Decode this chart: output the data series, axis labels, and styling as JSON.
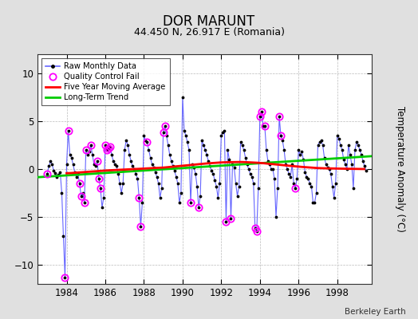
{
  "title": "DOR MARUNT",
  "subtitle": "44.450 N, 26.917 E (Romania)",
  "credit": "Berkeley Earth",
  "ylabel": "Temperature Anomaly (°C)",
  "xlim": [
    1982.5,
    1999.8
  ],
  "ylim": [
    -12,
    12
  ],
  "yticks": [
    -10,
    -5,
    0,
    5,
    10
  ],
  "xticks": [
    1984,
    1986,
    1988,
    1990,
    1992,
    1994,
    1996,
    1998
  ],
  "bg_color": "#e0e0e0",
  "plot_bg_color": "#ffffff",
  "raw_color": "#6666ff",
  "qc_color": "#ff00ff",
  "ma_color": "#ff0000",
  "trend_color": "#00cc00",
  "raw_data": [
    [
      1983.0,
      -0.5
    ],
    [
      1983.083,
      0.3
    ],
    [
      1983.167,
      0.8
    ],
    [
      1983.25,
      0.5
    ],
    [
      1983.333,
      -0.2
    ],
    [
      1983.417,
      -0.4
    ],
    [
      1983.5,
      -0.8
    ],
    [
      1983.583,
      -0.6
    ],
    [
      1983.667,
      -0.3
    ],
    [
      1983.75,
      -2.5
    ],
    [
      1983.833,
      -7.0
    ],
    [
      1983.917,
      -11.3
    ],
    [
      1984.0,
      0.5
    ],
    [
      1984.083,
      4.0
    ],
    [
      1984.167,
      1.5
    ],
    [
      1984.25,
      1.2
    ],
    [
      1984.333,
      0.5
    ],
    [
      1984.417,
      -0.3
    ],
    [
      1984.5,
      -0.8
    ],
    [
      1984.583,
      -0.5
    ],
    [
      1984.667,
      -1.5
    ],
    [
      1984.75,
      -2.8
    ],
    [
      1984.833,
      -2.5
    ],
    [
      1984.917,
      -3.5
    ],
    [
      1985.0,
      2.0
    ],
    [
      1985.083,
      1.5
    ],
    [
      1985.167,
      1.8
    ],
    [
      1985.25,
      2.5
    ],
    [
      1985.333,
      1.5
    ],
    [
      1985.417,
      0.5
    ],
    [
      1985.5,
      0.3
    ],
    [
      1985.583,
      0.8
    ],
    [
      1985.667,
      -1.0
    ],
    [
      1985.75,
      -2.0
    ],
    [
      1985.833,
      -4.0
    ],
    [
      1985.917,
      -3.0
    ],
    [
      1986.0,
      2.5
    ],
    [
      1986.083,
      2.0
    ],
    [
      1986.167,
      2.2
    ],
    [
      1986.25,
      2.3
    ],
    [
      1986.333,
      1.5
    ],
    [
      1986.417,
      0.8
    ],
    [
      1986.5,
      0.5
    ],
    [
      1986.583,
      0.3
    ],
    [
      1986.667,
      -0.5
    ],
    [
      1986.75,
      -1.5
    ],
    [
      1986.833,
      -2.5
    ],
    [
      1986.917,
      -1.5
    ],
    [
      1987.0,
      2.0
    ],
    [
      1987.083,
      3.0
    ],
    [
      1987.167,
      2.5
    ],
    [
      1987.25,
      1.5
    ],
    [
      1987.333,
      0.8
    ],
    [
      1987.417,
      0.3
    ],
    [
      1987.5,
      0.0
    ],
    [
      1987.583,
      -0.5
    ],
    [
      1987.667,
      -1.0
    ],
    [
      1987.75,
      -3.0
    ],
    [
      1987.833,
      -6.0
    ],
    [
      1987.917,
      -3.5
    ],
    [
      1988.0,
      3.5
    ],
    [
      1988.083,
      3.0
    ],
    [
      1988.167,
      2.8
    ],
    [
      1988.25,
      2.0
    ],
    [
      1988.333,
      1.2
    ],
    [
      1988.417,
      0.5
    ],
    [
      1988.5,
      0.2
    ],
    [
      1988.583,
      -0.3
    ],
    [
      1988.667,
      -0.8
    ],
    [
      1988.75,
      -1.5
    ],
    [
      1988.833,
      -3.0
    ],
    [
      1988.917,
      -2.0
    ],
    [
      1989.0,
      3.8
    ],
    [
      1989.083,
      4.5
    ],
    [
      1989.167,
      3.5
    ],
    [
      1989.25,
      2.5
    ],
    [
      1989.333,
      1.5
    ],
    [
      1989.417,
      0.8
    ],
    [
      1989.5,
      0.3
    ],
    [
      1989.583,
      -0.2
    ],
    [
      1989.667,
      -0.8
    ],
    [
      1989.75,
      -1.5
    ],
    [
      1989.833,
      -3.5
    ],
    [
      1989.917,
      -2.5
    ],
    [
      1990.0,
      7.5
    ],
    [
      1990.083,
      4.0
    ],
    [
      1990.167,
      3.5
    ],
    [
      1990.25,
      2.8
    ],
    [
      1990.333,
      2.0
    ],
    [
      1990.417,
      -3.5
    ],
    [
      1990.5,
      0.5
    ],
    [
      1990.583,
      0.2
    ],
    [
      1990.667,
      -0.5
    ],
    [
      1990.75,
      -1.8
    ],
    [
      1990.833,
      -4.0
    ],
    [
      1990.917,
      -2.8
    ],
    [
      1991.0,
      3.0
    ],
    [
      1991.083,
      2.5
    ],
    [
      1991.167,
      2.0
    ],
    [
      1991.25,
      1.5
    ],
    [
      1991.333,
      0.8
    ],
    [
      1991.417,
      0.3
    ],
    [
      1991.5,
      -0.2
    ],
    [
      1991.583,
      -0.5
    ],
    [
      1991.667,
      -1.2
    ],
    [
      1991.75,
      -1.8
    ],
    [
      1991.833,
      -3.0
    ],
    [
      1991.917,
      -1.5
    ],
    [
      1992.0,
      3.5
    ],
    [
      1992.083,
      3.8
    ],
    [
      1992.167,
      4.0
    ],
    [
      1992.25,
      -5.5
    ],
    [
      1992.333,
      2.0
    ],
    [
      1992.417,
      1.0
    ],
    [
      1992.5,
      -5.2
    ],
    [
      1992.583,
      0.5
    ],
    [
      1992.667,
      0.2
    ],
    [
      1992.75,
      -1.5
    ],
    [
      1992.833,
      -2.8
    ],
    [
      1992.917,
      -1.8
    ],
    [
      1993.0,
      2.8
    ],
    [
      1993.083,
      2.5
    ],
    [
      1993.167,
      2.0
    ],
    [
      1993.25,
      1.2
    ],
    [
      1993.333,
      0.5
    ],
    [
      1993.417,
      0.0
    ],
    [
      1993.5,
      -0.5
    ],
    [
      1993.583,
      -0.8
    ],
    [
      1993.667,
      -1.5
    ],
    [
      1993.75,
      -6.2
    ],
    [
      1993.833,
      -6.5
    ],
    [
      1993.917,
      -2.0
    ],
    [
      1994.0,
      5.5
    ],
    [
      1994.083,
      6.0
    ],
    [
      1994.167,
      4.5
    ],
    [
      1994.25,
      4.5
    ],
    [
      1994.333,
      2.0
    ],
    [
      1994.417,
      0.8
    ],
    [
      1994.5,
      0.5
    ],
    [
      1994.583,
      0.0
    ],
    [
      1994.667,
      0.0
    ],
    [
      1994.75,
      -1.0
    ],
    [
      1994.833,
      -5.0
    ],
    [
      1994.917,
      -2.0
    ],
    [
      1995.0,
      5.5
    ],
    [
      1995.083,
      3.5
    ],
    [
      1995.167,
      3.0
    ],
    [
      1995.25,
      2.0
    ],
    [
      1995.333,
      0.5
    ],
    [
      1995.417,
      0.0
    ],
    [
      1995.5,
      -0.5
    ],
    [
      1995.583,
      -0.8
    ],
    [
      1995.667,
      0.5
    ],
    [
      1995.75,
      -1.5
    ],
    [
      1995.833,
      -2.0
    ],
    [
      1995.917,
      -1.0
    ],
    [
      1996.0,
      2.0
    ],
    [
      1996.083,
      1.5
    ],
    [
      1996.167,
      1.8
    ],
    [
      1996.25,
      1.0
    ],
    [
      1996.333,
      -0.3
    ],
    [
      1996.417,
      -0.8
    ],
    [
      1996.5,
      -1.0
    ],
    [
      1996.583,
      -1.5
    ],
    [
      1996.667,
      -1.8
    ],
    [
      1996.75,
      -3.5
    ],
    [
      1996.833,
      -3.5
    ],
    [
      1996.917,
      -2.5
    ],
    [
      1997.0,
      2.5
    ],
    [
      1997.083,
      2.8
    ],
    [
      1997.167,
      3.0
    ],
    [
      1997.25,
      2.5
    ],
    [
      1997.333,
      1.2
    ],
    [
      1997.417,
      0.5
    ],
    [
      1997.5,
      0.2
    ],
    [
      1997.583,
      0.0
    ],
    [
      1997.667,
      -0.5
    ],
    [
      1997.75,
      -1.8
    ],
    [
      1997.833,
      -3.0
    ],
    [
      1997.917,
      -1.5
    ],
    [
      1998.0,
      3.5
    ],
    [
      1998.083,
      3.2
    ],
    [
      1998.167,
      2.5
    ],
    [
      1998.25,
      2.0
    ],
    [
      1998.333,
      1.0
    ],
    [
      1998.417,
      0.5
    ],
    [
      1998.5,
      0.0
    ],
    [
      1998.583,
      2.5
    ],
    [
      1998.667,
      1.5
    ],
    [
      1998.75,
      0.5
    ],
    [
      1998.833,
      -2.0
    ],
    [
      1998.917,
      2.0
    ],
    [
      1999.0,
      2.8
    ],
    [
      1999.083,
      2.5
    ],
    [
      1999.167,
      2.0
    ],
    [
      1999.25,
      1.5
    ],
    [
      1999.333,
      0.8
    ],
    [
      1999.417,
      0.3
    ],
    [
      1999.5,
      -0.2
    ]
  ],
  "qc_fail_times": [
    1983.0,
    1983.917,
    1984.083,
    1984.667,
    1984.75,
    1984.917,
    1985.0,
    1985.25,
    1985.583,
    1985.667,
    1985.75,
    1986.0,
    1986.083,
    1986.167,
    1986.25,
    1987.75,
    1987.833,
    1988.167,
    1989.0,
    1989.083,
    1990.417,
    1990.833,
    1992.25,
    1992.5,
    1993.75,
    1993.833,
    1994.0,
    1994.083,
    1994.25,
    1995.0,
    1995.083,
    1995.833
  ],
  "ma_x": [
    1984.0,
    1985.0,
    1986.0,
    1987.0,
    1988.0,
    1989.0,
    1990.0,
    1991.0,
    1992.0,
    1993.0,
    1994.0,
    1995.0,
    1996.0,
    1997.0,
    1998.0,
    1999.4
  ],
  "ma_y": [
    -0.45,
    -0.3,
    -0.15,
    -0.05,
    0.05,
    0.15,
    0.35,
    0.55,
    0.7,
    0.75,
    0.65,
    0.45,
    0.25,
    0.1,
    0.05,
    0.0
  ],
  "trend_x": [
    1982.5,
    1999.8
  ],
  "trend_y": [
    -0.85,
    1.35
  ]
}
